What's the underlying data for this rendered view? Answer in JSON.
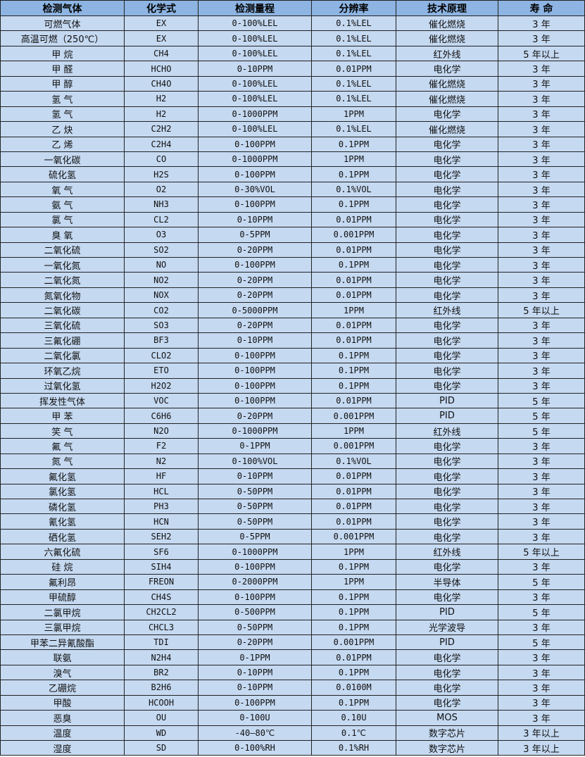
{
  "colors": {
    "header_bg": "#8DB4E2",
    "row_bg": "#C5D9F1",
    "border": "#222222"
  },
  "table": {
    "headers": [
      "检测气体",
      "化学式",
      "检测量程",
      "分辨率",
      "技术原理",
      "寿 命"
    ],
    "rows": [
      [
        "可燃气体",
        "EX",
        "0-100%LEL",
        "0.1%LEL",
        "催化燃烧",
        "3 年"
      ],
      [
        "高温可燃（250℃）",
        "EX",
        "0-100%LEL",
        "0.1%LEL",
        "催化燃烧",
        "3 年"
      ],
      [
        "甲 烷",
        "CH4",
        "0-100%LEL",
        "0.1%LEL",
        "红外线",
        "5 年以上"
      ],
      [
        "甲 醛",
        "HCHO",
        "0-10PPM",
        "0.01PPM",
        "电化学",
        "3 年"
      ],
      [
        "甲 醇",
        "CH4O",
        "0-100%LEL",
        "0.1%LEL",
        "催化燃烧",
        "3 年"
      ],
      [
        "氢 气",
        "H2",
        "0-100%LEL",
        "0.1%LEL",
        "催化燃烧",
        "3 年"
      ],
      [
        "氢 气",
        "H2",
        "0-1000PPM",
        "1PPM",
        "电化学",
        "3 年"
      ],
      [
        "乙 炔",
        "C2H2",
        "0-100%LEL",
        "0.1%LEL",
        "催化燃烧",
        "3 年"
      ],
      [
        "乙 烯",
        "C2H4",
        "0-100PPM",
        "0.1PPM",
        "电化学",
        "3 年"
      ],
      [
        "一氧化碳",
        "CO",
        "0-1000PPM",
        "1PPM",
        "电化学",
        "3 年"
      ],
      [
        "硫化氢",
        "H2S",
        "0-100PPM",
        "0.1PPM",
        "电化学",
        "3 年"
      ],
      [
        "氧 气",
        "O2",
        "0-30%VOL",
        "0.1%VOL",
        "电化学",
        "3 年"
      ],
      [
        "氨 气",
        "NH3",
        "0-100PPM",
        "0.1PPM",
        "电化学",
        "3 年"
      ],
      [
        "氯 气",
        "CL2",
        "0-10PPM",
        "0.01PPM",
        "电化学",
        "3 年"
      ],
      [
        "臭 氧",
        "O3",
        "0-5PPM",
        "0.001PPM",
        "电化学",
        "3 年"
      ],
      [
        "二氧化硫",
        "SO2",
        "0-20PPM",
        "0.01PPM",
        "电化学",
        "3 年"
      ],
      [
        "一氧化氮",
        "NO",
        "0-100PPM",
        "0.1PPM",
        "电化学",
        "3 年"
      ],
      [
        "二氧化氮",
        "NO2",
        "0-20PPM",
        "0.01PPM",
        "电化学",
        "3 年"
      ],
      [
        "氮氧化物",
        "NOX",
        "0-20PPM",
        "0.01PPM",
        "电化学",
        "3 年"
      ],
      [
        "二氧化碳",
        "CO2",
        "0-5000PPM",
        "1PPM",
        "红外线",
        "5 年以上"
      ],
      [
        "三氧化硫",
        "SO3",
        "0-20PPM",
        "0.01PPM",
        "电化学",
        "3 年"
      ],
      [
        "三氟化硼",
        "BF3",
        "0-10PPM",
        "0.01PPM",
        "电化学",
        "3 年"
      ],
      [
        "二氧化氯",
        "CLO2",
        "0-100PPM",
        "0.1PPM",
        "电化学",
        "3 年"
      ],
      [
        "环氧乙烷",
        "ETO",
        "0-100PPM",
        "0.1PPM",
        "电化学",
        "3 年"
      ],
      [
        "过氧化氢",
        "H2O2",
        "0-100PPM",
        "0.1PPM",
        "电化学",
        "3 年"
      ],
      [
        "挥发性气体",
        "VOC",
        "0-100PPM",
        "0.01PPM",
        "PID",
        "5 年"
      ],
      [
        "甲 苯",
        "C6H6",
        "0-20PPM",
        "0.001PPM",
        "PID",
        "5 年"
      ],
      [
        "笑 气",
        "N2O",
        "0-1000PPM",
        "1PPM",
        "红外线",
        "5 年"
      ],
      [
        "氟 气",
        "F2",
        "0-1PPM",
        "0.001PPM",
        "电化学",
        "3 年"
      ],
      [
        "氮 气",
        "N2",
        "0-100%VOL",
        "0.1%VOL",
        "电化学",
        "3 年"
      ],
      [
        "氟化氢",
        "HF",
        "0-10PPM",
        "0.01PPM",
        "电化学",
        "3 年"
      ],
      [
        "氯化氢",
        "HCL",
        "0-50PPM",
        "0.01PPM",
        "电化学",
        "3 年"
      ],
      [
        "磷化氢",
        "PH3",
        "0-50PPM",
        "0.01PPM",
        "电化学",
        "3 年"
      ],
      [
        "氰化氢",
        "HCN",
        "0-50PPM",
        "0.01PPM",
        "电化学",
        "3 年"
      ],
      [
        "硒化氢",
        "SEH2",
        "0-5PPM",
        "0.001PPM",
        "电化学",
        "3 年"
      ],
      [
        "六氟化硫",
        "SF6",
        "0-1000PPM",
        "1PPM",
        "红外线",
        "5 年以上"
      ],
      [
        "硅 烷",
        "SIH4",
        "0-100PPM",
        "0.1PPM",
        "电化学",
        "3 年"
      ],
      [
        "氟利昂",
        "FREON",
        "0-2000PPM",
        "1PPM",
        "半导体",
        "5 年"
      ],
      [
        "甲硫醇",
        "CH4S",
        "0-100PPM",
        "0.1PPM",
        "电化学",
        "3 年"
      ],
      [
        "二氯甲烷",
        "CH2CL2",
        "0-500PPM",
        "0.1PPM",
        "PID",
        "5 年"
      ],
      [
        "三氯甲烷",
        "CHCL3",
        "0-50PPM",
        "0.1PPM",
        "光学波导",
        "3 年"
      ],
      [
        "甲苯二异氰酸酯",
        "TDI",
        "0-20PPM",
        "0.001PPM",
        "PID",
        "5 年"
      ],
      [
        "联氨",
        "N2H4",
        "0-1PPM",
        "0.01PPM",
        "电化学",
        "3 年"
      ],
      [
        "溴气",
        "BR2",
        "0-10PPM",
        "0.1PPM",
        "电化学",
        "3 年"
      ],
      [
        "乙硼烷",
        "B2H6",
        "0-10PPM",
        "0.0100M",
        "电化学",
        "3 年"
      ],
      [
        "甲酸",
        "HCOOH",
        "0-100PPM",
        "0.1PPM",
        "电化学",
        "3 年"
      ],
      [
        "恶臭",
        "OU",
        "0-100U",
        "0.10U",
        "MOS",
        "3 年"
      ],
      [
        "温度",
        "WD",
        "-40—80℃",
        "0.1℃",
        "数字芯片",
        "3 年以上"
      ],
      [
        "湿度",
        "SD",
        "0-100%RH",
        "0.1%RH",
        "数字芯片",
        "3 年以上"
      ]
    ]
  }
}
